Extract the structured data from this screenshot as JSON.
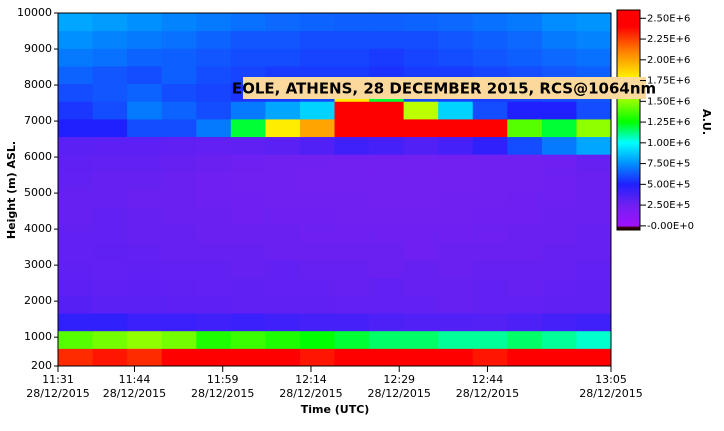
{
  "chart_data": {
    "type": "heatmap",
    "title": "EOLE, ATHENS, 28 DECEMBER 2015, RCS@1064nm",
    "x_label": "Time (UTC)",
    "y_label": "Height (m) ASL.",
    "colorbar_label": "A.U.",
    "xbins": [
      691,
      696.875,
      702.75,
      708.625,
      714.5,
      720.375,
      726.25,
      732.125,
      738,
      743.875,
      749.75,
      755.625,
      761.5,
      767.375,
      773.25,
      779.125,
      785
    ],
    "ybins": [
      200,
      690,
      1180,
      1670,
      2160,
      2650,
      3140,
      3630,
      4120,
      4610,
      5100,
      5590,
      6080,
      6570,
      7060,
      7550,
      8040,
      8530,
      9020,
      9510,
      10000
    ],
    "z": [
      [
        2300000,
        2350000,
        2300000,
        2400000,
        2400000,
        2450000,
        2400000,
        2350000,
        2450000,
        2500000,
        2450000,
        2400000,
        2350000,
        2400000,
        2450000,
        2500000
      ],
      [
        1400000,
        1450000,
        1500000,
        1450000,
        1300000,
        1350000,
        1300000,
        1250000,
        1200000,
        1150000,
        1150000,
        1100000,
        1100000,
        1150000,
        1100000,
        1050000
      ],
      [
        450000,
        450000,
        420000,
        420000,
        400000,
        420000,
        400000,
        380000,
        380000,
        360000,
        350000,
        350000,
        340000,
        360000,
        380000,
        400000
      ],
      [
        330000,
        320000,
        320000,
        310000,
        310000,
        300000,
        300000,
        300000,
        290000,
        290000,
        290000,
        280000,
        290000,
        290000,
        300000,
        300000
      ],
      [
        310000,
        300000,
        310000,
        300000,
        290000,
        300000,
        290000,
        290000,
        280000,
        290000,
        280000,
        280000,
        290000,
        280000,
        290000,
        300000
      ],
      [
        300000,
        290000,
        300000,
        290000,
        290000,
        280000,
        290000,
        280000,
        280000,
        270000,
        280000,
        270000,
        280000,
        280000,
        280000,
        290000
      ],
      [
        290000,
        300000,
        290000,
        280000,
        280000,
        280000,
        270000,
        270000,
        270000,
        270000,
        260000,
        270000,
        270000,
        270000,
        280000,
        280000
      ],
      [
        290000,
        290000,
        280000,
        280000,
        270000,
        270000,
        270000,
        260000,
        260000,
        260000,
        260000,
        260000,
        260000,
        270000,
        270000,
        280000
      ],
      [
        280000,
        290000,
        280000,
        270000,
        270000,
        260000,
        260000,
        260000,
        250000,
        250000,
        250000,
        250000,
        260000,
        260000,
        270000,
        270000
      ],
      [
        280000,
        280000,
        270000,
        270000,
        260000,
        260000,
        250000,
        250000,
        250000,
        240000,
        240000,
        250000,
        250000,
        260000,
        260000,
        270000
      ],
      [
        290000,
        280000,
        280000,
        270000,
        260000,
        250000,
        250000,
        240000,
        240000,
        240000,
        240000,
        240000,
        250000,
        250000,
        260000,
        270000
      ],
      [
        300000,
        290000,
        290000,
        280000,
        270000,
        260000,
        250000,
        250000,
        240000,
        240000,
        240000,
        240000,
        250000,
        250000,
        260000,
        280000
      ],
      [
        320000,
        310000,
        310000,
        300000,
        290000,
        300000,
        320000,
        350000,
        400000,
        380000,
        350000,
        380000,
        450000,
        600000,
        700000,
        800000
      ],
      [
        500000,
        500000,
        600000,
        600000,
        700000,
        1200000,
        1800000,
        2000000,
        2600000,
        2600000,
        2600000,
        2600000,
        2400000,
        1400000,
        1200000,
        1500000
      ],
      [
        550000,
        600000,
        700000,
        650000,
        600000,
        700000,
        800000,
        900000,
        2600000,
        2600000,
        1600000,
        900000,
        600000,
        500000,
        500000,
        600000
      ],
      [
        600000,
        620000,
        650000,
        600000,
        580000,
        550000,
        560000,
        600000,
        1800000,
        1200000,
        600000,
        580000,
        560000,
        580000,
        600000,
        620000
      ],
      [
        650000,
        620000,
        600000,
        640000,
        600000,
        580000,
        560000,
        560000,
        560000,
        540000,
        560000,
        560000,
        580000,
        600000,
        620000,
        640000
      ],
      [
        700000,
        680000,
        650000,
        640000,
        620000,
        600000,
        600000,
        580000,
        580000,
        560000,
        580000,
        600000,
        620000,
        640000,
        660000,
        680000
      ],
      [
        750000,
        720000,
        700000,
        680000,
        650000,
        620000,
        620000,
        600000,
        600000,
        600000,
        600000,
        620000,
        640000,
        660000,
        700000,
        720000
      ],
      [
        800000,
        780000,
        750000,
        720000,
        700000,
        680000,
        660000,
        650000,
        640000,
        640000,
        650000,
        660000,
        680000,
        700000,
        740000,
        760000
      ]
    ],
    "xlim": [
      691,
      785
    ],
    "ylim": [
      200,
      10000
    ],
    "zlim": [
      -50000,
      2600000
    ],
    "xticks": [
      {
        "value": 691,
        "label": "11:31",
        "date": "28/12/2015"
      },
      {
        "value": 704,
        "label": "11:44",
        "date": "28/12/2015"
      },
      {
        "value": 719,
        "label": "11:59",
        "date": "28/12/2015"
      },
      {
        "value": 734,
        "label": "12:14",
        "date": "28/12/2015"
      },
      {
        "value": 749,
        "label": "12:29",
        "date": "28/12/2015"
      },
      {
        "value": 764,
        "label": "12:44",
        "date": "28/12/2015"
      },
      {
        "value": 785,
        "label": "13:05",
        "date": "28/12/2015"
      }
    ],
    "yticks": [
      200,
      1000,
      2000,
      3000,
      4000,
      5000,
      6000,
      7000,
      8000,
      9000,
      10000
    ],
    "zticks": [
      {
        "value": 2500000,
        "label": "2.50E+6"
      },
      {
        "value": 2250000,
        "label": "2.25E+6"
      },
      {
        "value": 2000000,
        "label": "2.00E+6"
      },
      {
        "value": 1750000,
        "label": "1.75E+6"
      },
      {
        "value": 1500000,
        "label": "1.50E+6"
      },
      {
        "value": 1250000,
        "label": "1.25E+6"
      },
      {
        "value": 1000000,
        "label": "1.00E+6"
      },
      {
        "value": 750000,
        "label": "7.50E+5"
      },
      {
        "value": 500000,
        "label": "5.00E+5"
      },
      {
        "value": 250000,
        "label": "2.50E+5"
      },
      {
        "value": 0,
        "label": "-0.00E+0"
      }
    ],
    "colorscale": [
      [
        -50000,
        "#300000"
      ],
      [
        -20000,
        "#300000"
      ],
      [
        0,
        "#a010ff"
      ],
      [
        250000,
        "#7020f0"
      ],
      [
        500000,
        "#2020ff"
      ],
      [
        750000,
        "#0090ff"
      ],
      [
        1000000,
        "#00ffff"
      ],
      [
        1250000,
        "#00ff00"
      ],
      [
        1500000,
        "#90ff00"
      ],
      [
        1750000,
        "#ffff00"
      ],
      [
        2100000,
        "#ff8000"
      ],
      [
        2400000,
        "#ff0000"
      ],
      [
        2600000,
        "#ff0000"
      ]
    ]
  }
}
